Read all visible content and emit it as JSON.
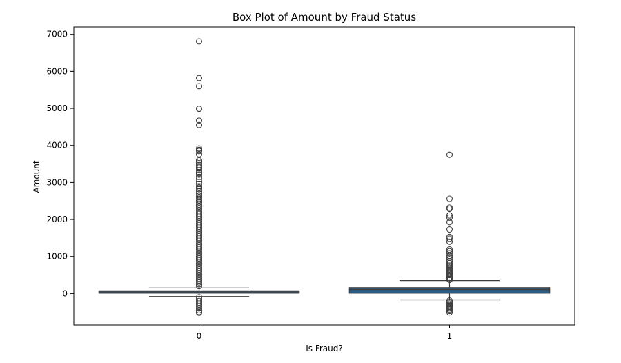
{
  "chart_data": {
    "type": "box",
    "title": "Box Plot of Amount by Fraud Status",
    "xlabel": "Is Fraud?",
    "ylabel": "Amount",
    "ylim": [
      -850,
      7200
    ],
    "yticks": [
      0,
      1000,
      2000,
      3000,
      4000,
      5000,
      6000,
      7000
    ],
    "grid": false,
    "categories": [
      "0",
      "1"
    ],
    "boxes": [
      {
        "category": "0",
        "color": "#3a5f86",
        "whisker_low": -80,
        "q1": 10,
        "median": 45,
        "q3": 75,
        "whisker_high": 150,
        "outliers": [
          6810,
          5820,
          5600,
          4990,
          4670,
          4550,
          3920,
          3880,
          3850,
          3760,
          3600,
          3560,
          3520,
          3470,
          3420,
          3380,
          3330,
          3280,
          3250,
          3210,
          3150,
          3090,
          3020,
          2960,
          2900,
          2860,
          2820,
          2760,
          2700,
          2650,
          2600,
          2560,
          2510,
          2460,
          2400,
          2350,
          2300,
          2250,
          2200,
          2150,
          2100,
          2050,
          2000,
          1950,
          1900,
          1850,
          1800,
          1750,
          1700,
          1650,
          1600,
          1550,
          1500,
          1450,
          1400,
          1350,
          1300,
          1250,
          1200,
          1150,
          1100,
          1050,
          1000,
          950,
          900,
          850,
          800,
          750,
          700,
          650,
          600,
          550,
          500,
          450,
          400,
          350,
          300,
          250,
          200,
          -100,
          -150,
          -200,
          -250,
          -300,
          -350,
          -400,
          -450,
          -500,
          -520
        ]
      },
      {
        "category": "1",
        "color": "#2b5d84",
        "whisker_low": -170,
        "q1": 10,
        "median": 110,
        "q3": 160,
        "whisker_high": 350,
        "outliers": [
          3750,
          2560,
          2320,
          2290,
          2110,
          2050,
          1930,
          1730,
          1530,
          1480,
          1400,
          1190,
          1140,
          1090,
          1020,
          970,
          920,
          870,
          820,
          780,
          740,
          700,
          660,
          620,
          580,
          540,
          500,
          460,
          420,
          390,
          370,
          -190,
          -230,
          -270,
          -310,
          -350,
          -390,
          -430,
          -470,
          -510
        ]
      }
    ]
  }
}
